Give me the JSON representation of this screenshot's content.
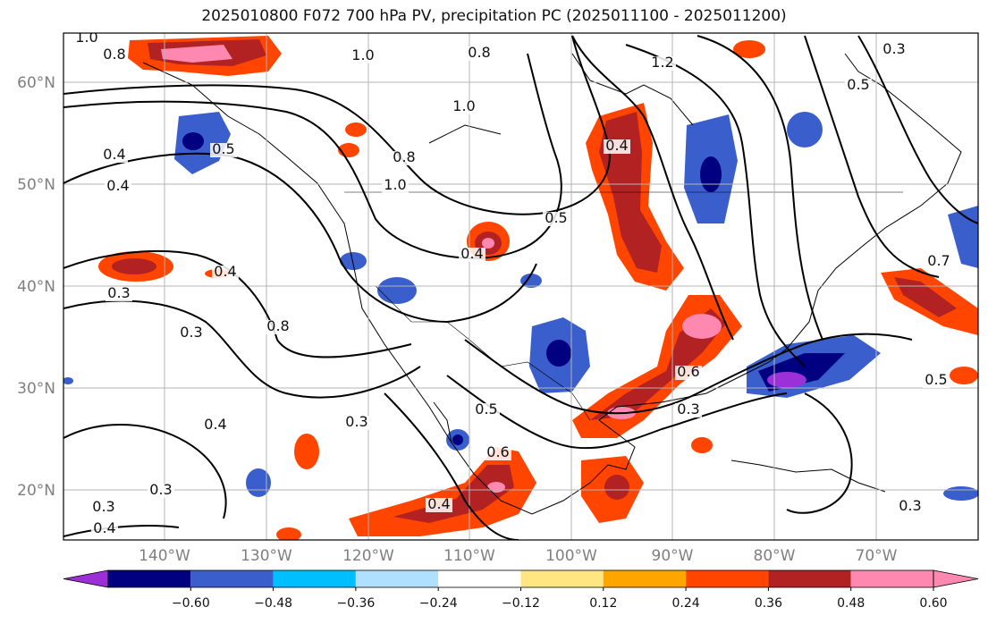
{
  "title": "2025010800 F072 700 hPa PV, precipitation PC (2025011100 - 2025011200)",
  "map": {
    "projection": "PlateCarree",
    "extent": {
      "lon": [
        -150,
        -60
      ],
      "lat": [
        15,
        65
      ]
    },
    "lat_labels": [
      "60°N",
      "50°N",
      "40°N",
      "30°N",
      "20°N"
    ],
    "lon_labels": [
      "140°W",
      "130°W",
      "120°W",
      "110°W",
      "100°W",
      "90°W",
      "80°W",
      "70°W"
    ],
    "contour_labels": [
      "1.0",
      "0.8",
      "1.0",
      "0.8",
      "1.2",
      "0.5",
      "1.0",
      "0.4",
      "0.5",
      "0.4",
      "0.8",
      "1.0",
      "0.5",
      "0.4",
      "0.4",
      "0.7",
      "0.3",
      "0.8",
      "0.3",
      "0.4",
      "0.6",
      "0.3",
      "0.5",
      "0.5",
      "0.4",
      "0.3",
      "0.6",
      "0.3",
      "0.3",
      "0.3",
      "0.4",
      "0.4",
      "0.3"
    ]
  },
  "colorbar": {
    "ticks": [
      "−0.60",
      "−0.48",
      "−0.36",
      "−0.24",
      "−0.12",
      "0.12",
      "0.24",
      "0.36",
      "0.48",
      "0.60"
    ],
    "colors": [
      "#9b30d9",
      "#000080",
      "#3a5fcd",
      "#00bfff",
      "#b0e0ff",
      "#ffffff",
      "#ffe680",
      "#ffa500",
      "#ff4500",
      "#b22222",
      "#ff88b0",
      "#ff88b0"
    ]
  }
}
